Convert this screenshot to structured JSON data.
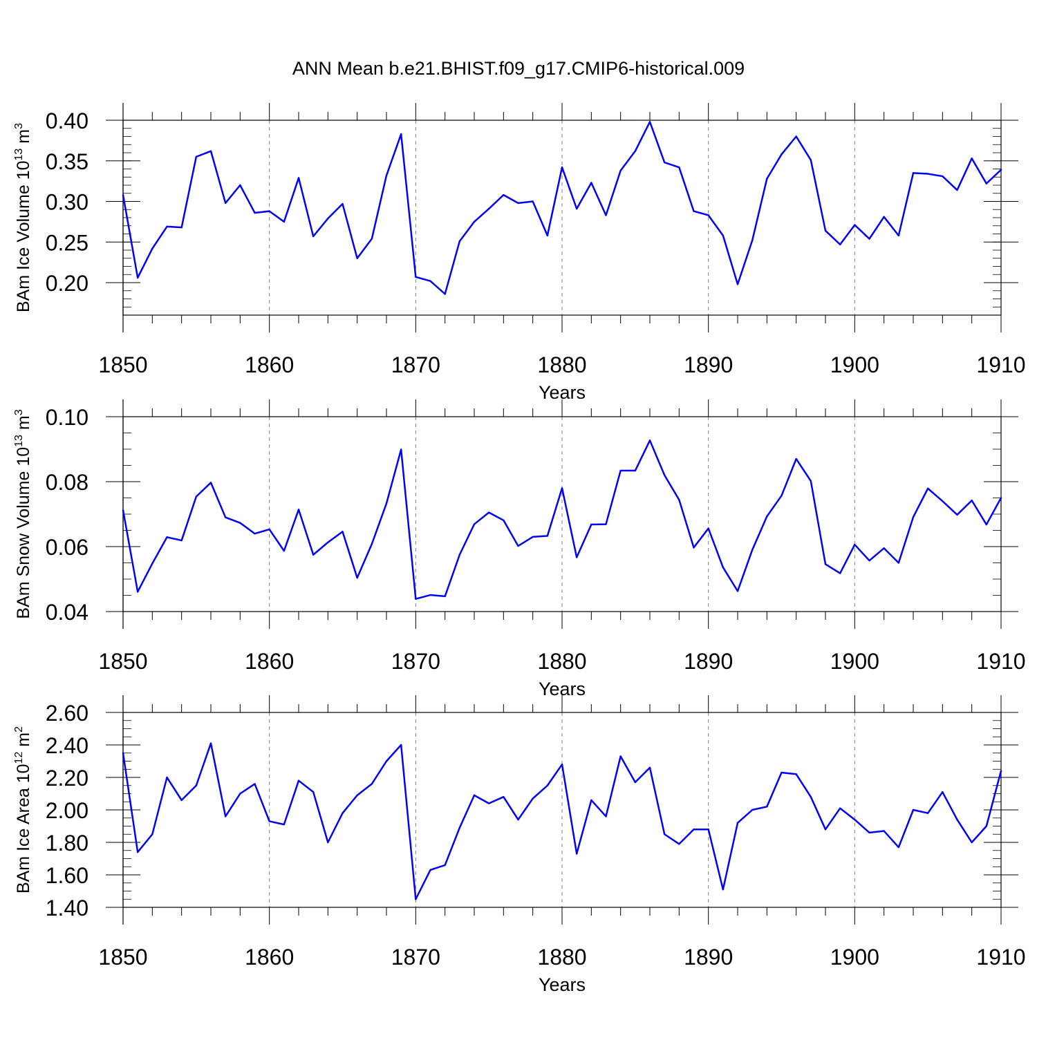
{
  "title": "ANN Mean b.e21.BHIST.f09_g17.CMIP6-historical.009",
  "colors": {
    "line": "#0000ff",
    "axis": "#000000",
    "grid": "#808080"
  },
  "chart_data": [
    {
      "type": "line",
      "name": "ice-volume",
      "ylabel_main": "BAm Ice Volume 10",
      "ylabel_exp": "13",
      "ylabel_unit": " m",
      "ylabel_unit_exp": "3",
      "xlabel": "Years",
      "xlim": [
        1850,
        1910
      ],
      "ylim": [
        0.16,
        0.4
      ],
      "yticks": [
        0.2,
        0.25,
        0.3,
        0.35,
        0.4
      ],
      "ytick_labels": [
        "0.20",
        "0.25",
        "0.30",
        "0.35",
        "0.40"
      ],
      "yminor_step": 0.01,
      "xticks": [
        1850,
        1860,
        1870,
        1880,
        1890,
        1900,
        1910
      ],
      "xtick_labels": [
        "1850",
        "1860",
        "1870",
        "1880",
        "1890",
        "1900",
        "1910"
      ],
      "x_start": 1850,
      "values": [
        0.308,
        0.206,
        0.242,
        0.269,
        0.268,
        0.355,
        0.362,
        0.298,
        0.32,
        0.286,
        0.288,
        0.275,
        0.329,
        0.257,
        0.279,
        0.297,
        0.23,
        0.254,
        0.332,
        0.383,
        0.207,
        0.202,
        0.186,
        0.251,
        0.275,
        0.291,
        0.308,
        0.298,
        0.3,
        0.258,
        0.342,
        0.291,
        0.323,
        0.283,
        0.338,
        0.362,
        0.398,
        0.348,
        0.342,
        0.288,
        0.283,
        0.258,
        0.198,
        0.252,
        0.328,
        0.358,
        0.38,
        0.351,
        0.264,
        0.247,
        0.271,
        0.254,
        0.281,
        0.258,
        0.335,
        0.334,
        0.331,
        0.314,
        0.353,
        0.322,
        0.339
      ]
    },
    {
      "type": "line",
      "name": "snow-volume",
      "ylabel_main": "BAm Snow Volume 10",
      "ylabel_exp": "13",
      "ylabel_unit": " m",
      "ylabel_unit_exp": "3",
      "xlabel": "Years",
      "xlim": [
        1850,
        1910
      ],
      "ylim": [
        0.04,
        0.1
      ],
      "yticks": [
        0.04,
        0.06,
        0.08,
        0.1
      ],
      "ytick_labels": [
        "0.04",
        "0.06",
        "0.08",
        "0.10"
      ],
      "yminor_step": 0.005,
      "xticks": [
        1850,
        1860,
        1870,
        1880,
        1890,
        1900,
        1910
      ],
      "xtick_labels": [
        "1850",
        "1860",
        "1870",
        "1880",
        "1890",
        "1900",
        "1910"
      ],
      "x_start": 1850,
      "values": [
        0.0712,
        0.0461,
        0.0548,
        0.0629,
        0.0619,
        0.0754,
        0.0797,
        0.069,
        0.0673,
        0.064,
        0.0653,
        0.0587,
        0.0714,
        0.0575,
        0.0613,
        0.0646,
        0.0504,
        0.0608,
        0.0733,
        0.0899,
        0.0439,
        0.0451,
        0.0447,
        0.0575,
        0.0669,
        0.0705,
        0.0681,
        0.0602,
        0.063,
        0.0633,
        0.078,
        0.0567,
        0.0668,
        0.0669,
        0.0834,
        0.0834,
        0.0927,
        0.082,
        0.0744,
        0.0597,
        0.0656,
        0.0536,
        0.0463,
        0.059,
        0.0693,
        0.0757,
        0.087,
        0.0802,
        0.0546,
        0.0518,
        0.0606,
        0.0557,
        0.0595,
        0.055,
        0.0691,
        0.0779,
        0.074,
        0.0698,
        0.0742,
        0.0668,
        0.075
      ]
    },
    {
      "type": "line",
      "name": "ice-area",
      "ylabel_main": "BAm Ice Area 10",
      "ylabel_exp": "12",
      "ylabel_unit": " m",
      "ylabel_unit_exp": "2",
      "xlabel": "Years",
      "xlim": [
        1850,
        1910
      ],
      "ylim": [
        1.4,
        2.6
      ],
      "yticks": [
        1.4,
        1.6,
        1.8,
        2.0,
        2.2,
        2.4,
        2.6
      ],
      "ytick_labels": [
        "1.40",
        "1.60",
        "1.80",
        "2.00",
        "2.20",
        "2.40",
        "2.60"
      ],
      "yminor_step": 0.05,
      "xticks": [
        1850,
        1860,
        1870,
        1880,
        1890,
        1900,
        1910
      ],
      "xtick_labels": [
        "1850",
        "1860",
        "1870",
        "1880",
        "1890",
        "1900",
        "1910"
      ],
      "x_start": 1850,
      "values": [
        2.35,
        1.74,
        1.85,
        2.2,
        2.06,
        2.15,
        2.41,
        1.96,
        2.1,
        2.16,
        1.93,
        1.91,
        2.18,
        2.11,
        1.8,
        1.98,
        2.09,
        2.16,
        2.3,
        2.4,
        1.45,
        1.63,
        1.66,
        1.89,
        2.09,
        2.04,
        2.08,
        1.94,
        2.07,
        2.15,
        2.28,
        1.73,
        2.06,
        1.96,
        2.33,
        2.17,
        2.26,
        1.85,
        1.79,
        1.88,
        1.88,
        1.51,
        1.92,
        2.0,
        2.02,
        2.23,
        2.22,
        2.08,
        1.88,
        2.01,
        1.94,
        1.86,
        1.87,
        1.77,
        2.0,
        1.98,
        2.11,
        1.94,
        1.8,
        1.9,
        2.24
      ]
    }
  ]
}
